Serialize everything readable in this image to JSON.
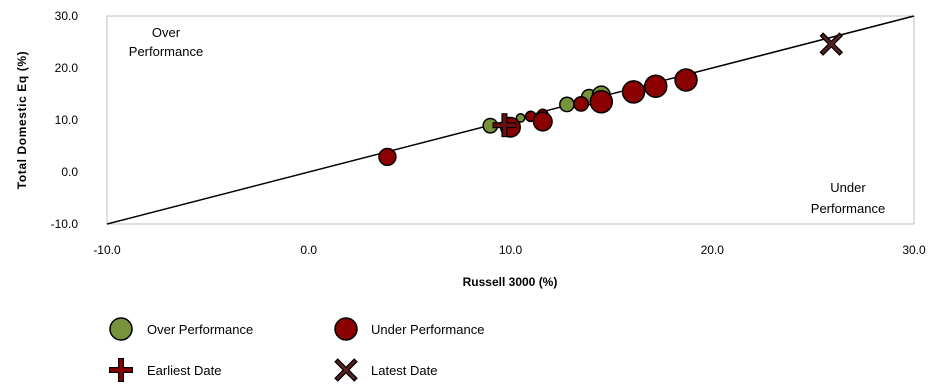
{
  "chart_data": {
    "type": "scatter",
    "title": "",
    "xlabel": "Russell 3000  (%)",
    "ylabel": "Total Domestic Eq  (%)",
    "xlim": [
      -10,
      30
    ],
    "ylim": [
      -10,
      30
    ],
    "x_ticks": [
      "-10.0",
      "0.0",
      "10.0",
      "20.0",
      "30.0"
    ],
    "y_ticks": [
      "-10.0",
      "0.0",
      "10.0",
      "20.0",
      "30.0"
    ],
    "grid": false,
    "reference_line": {
      "from": [
        -10,
        -10
      ],
      "to": [
        30,
        30
      ]
    },
    "annotations": {
      "over": [
        "Over",
        "Performance"
      ],
      "under": [
        "Under",
        "Performance"
      ]
    },
    "series": [
      {
        "name": "Over Performance",
        "color": "#77933c",
        "marker": "circle",
        "points": [
          {
            "x": 9.0,
            "y": 8.9,
            "size": 0.55
          },
          {
            "x": 9.9,
            "y": 9.6,
            "size": 0.25
          },
          {
            "x": 10.5,
            "y": 10.4,
            "size": 0.2
          },
          {
            "x": 12.8,
            "y": 13.0,
            "size": 0.55
          },
          {
            "x": 13.9,
            "y": 14.4,
            "size": 0.6
          },
          {
            "x": 14.5,
            "y": 14.8,
            "size": 0.75
          }
        ]
      },
      {
        "name": "Under Performance",
        "color": "#8b0000",
        "marker": "circle",
        "points": [
          {
            "x": 3.9,
            "y": 2.9,
            "size": 0.7
          },
          {
            "x": 10.0,
            "y": 8.6,
            "size": 0.85
          },
          {
            "x": 11.0,
            "y": 10.7,
            "size": 0.3
          },
          {
            "x": 11.6,
            "y": 11.1,
            "size": 0.3
          },
          {
            "x": 11.6,
            "y": 9.7,
            "size": 0.8
          },
          {
            "x": 13.5,
            "y": 13.1,
            "size": 0.55
          },
          {
            "x": 14.5,
            "y": 13.5,
            "size": 1.0
          },
          {
            "x": 16.1,
            "y": 15.4,
            "size": 1.0
          },
          {
            "x": 17.2,
            "y": 16.5,
            "size": 1.0
          },
          {
            "x": 18.7,
            "y": 17.7,
            "size": 1.0
          }
        ]
      },
      {
        "name": "Earliest Date",
        "color": "#6b1010",
        "marker": "plus",
        "points": [
          {
            "x": 9.7,
            "y": 9.0
          }
        ]
      },
      {
        "name": "Latest Date",
        "color": "#3a1a1a",
        "marker": "x",
        "points": [
          {
            "x": 25.9,
            "y": 24.6
          }
        ]
      }
    ],
    "legend": {
      "placement": "bottom",
      "items": [
        {
          "label": "Over Performance",
          "marker": "circle",
          "color": "#77933c"
        },
        {
          "label": "Under Performance",
          "marker": "circle",
          "color": "#8b0000"
        },
        {
          "label": "Earliest Date",
          "marker": "plus",
          "color": "#8b0000"
        },
        {
          "label": "Latest Date",
          "marker": "x",
          "color": "#3a1a1a"
        }
      ]
    }
  }
}
